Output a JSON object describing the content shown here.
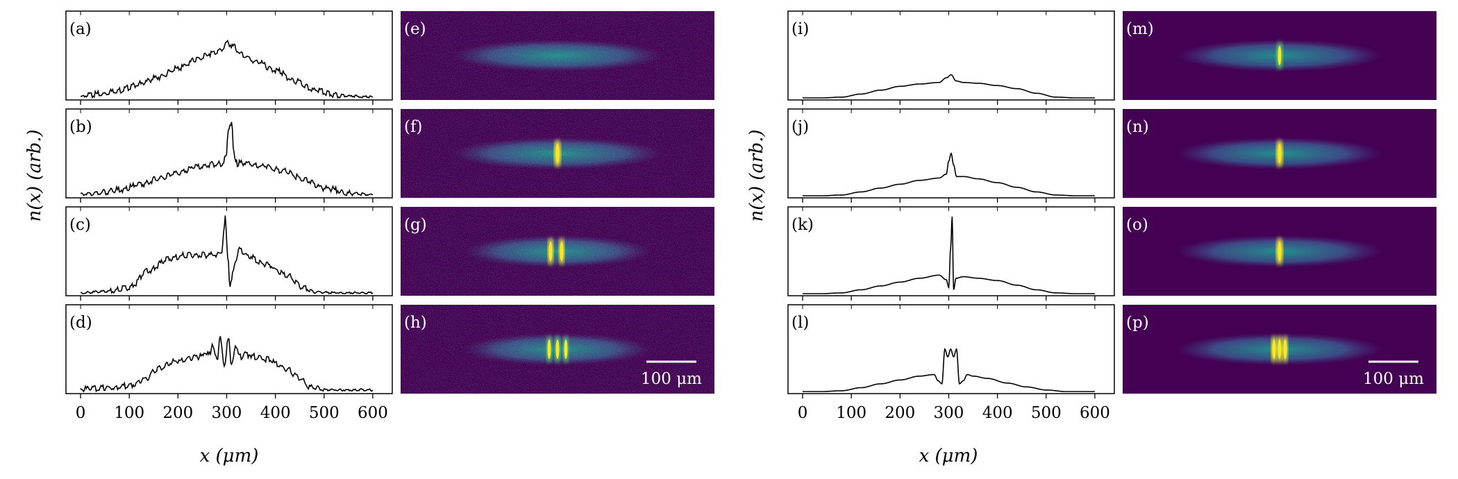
{
  "figure": {
    "ylabel": "n(x) (arb.)",
    "xlabel": "x (μm)",
    "scalebar_label": "100 μm",
    "colormap": [
      "#440154",
      "#3b528b",
      "#21908c",
      "#5dc962",
      "#fde725"
    ]
  },
  "chart_data": [
    {
      "group": "experiment",
      "type": "line",
      "xlabel": "x (μm)",
      "ylabel": "n(x) (arb.)",
      "xlim": [
        -30,
        640
      ],
      "xticks": [
        0,
        100,
        200,
        300,
        400,
        500,
        600
      ],
      "xtick_labels": [
        "0",
        "100",
        "200",
        "300",
        "400",
        "500",
        "600"
      ],
      "panels": [
        {
          "label": "(a)",
          "x": [
            0,
            40,
            80,
            120,
            160,
            200,
            240,
            270,
            290,
            300,
            315,
            330,
            360,
            400,
            440,
            480,
            520,
            560,
            600
          ],
          "y": [
            0.02,
            0.05,
            0.1,
            0.18,
            0.27,
            0.38,
            0.5,
            0.58,
            0.62,
            0.72,
            0.66,
            0.56,
            0.47,
            0.36,
            0.22,
            0.1,
            0.04,
            0.02,
            0.01
          ]
        },
        {
          "label": "(b)",
          "x": [
            0,
            40,
            80,
            120,
            160,
            200,
            240,
            270,
            290,
            298,
            305,
            310,
            315,
            322,
            340,
            380,
            420,
            460,
            500,
            560,
            600
          ],
          "y": [
            0.02,
            0.04,
            0.08,
            0.14,
            0.22,
            0.3,
            0.38,
            0.41,
            0.42,
            0.5,
            0.9,
            0.95,
            0.55,
            0.42,
            0.42,
            0.38,
            0.32,
            0.2,
            0.1,
            0.03,
            0.01
          ]
        },
        {
          "label": "(c)",
          "x": [
            0,
            60,
            100,
            140,
            180,
            220,
            260,
            280,
            290,
            297,
            302,
            307,
            312,
            318,
            326,
            340,
            380,
            420,
            460,
            480,
            520,
            600
          ],
          "y": [
            0.01,
            0.03,
            0.08,
            0.3,
            0.45,
            0.5,
            0.5,
            0.5,
            0.55,
            0.98,
            0.5,
            0.1,
            0.25,
            0.45,
            0.58,
            0.5,
            0.38,
            0.25,
            0.08,
            0.02,
            0.01,
            0.01
          ]
        },
        {
          "label": "(d)",
          "x": [
            0,
            60,
            100,
            130,
            160,
            200,
            240,
            265,
            272,
            280,
            287,
            295,
            303,
            310,
            318,
            326,
            340,
            380,
            420,
            450,
            470,
            500,
            600
          ],
          "y": [
            0.03,
            0.05,
            0.08,
            0.15,
            0.3,
            0.4,
            0.45,
            0.48,
            0.62,
            0.4,
            0.72,
            0.3,
            0.7,
            0.32,
            0.62,
            0.45,
            0.48,
            0.42,
            0.3,
            0.18,
            0.06,
            0.02,
            0.02
          ]
        }
      ]
    },
    {
      "group": "theory",
      "type": "line",
      "xlabel": "x (μm)",
      "ylabel": "n(x) (arb.)",
      "xlim": [
        -30,
        640
      ],
      "xticks": [
        0,
        100,
        200,
        300,
        400,
        500,
        600
      ],
      "xtick_labels": [
        "0",
        "100",
        "200",
        "300",
        "400",
        "500",
        "600"
      ],
      "panels": [
        {
          "label": "(i)",
          "x": [
            0,
            40,
            80,
            120,
            160,
            200,
            240,
            280,
            295,
            305,
            315,
            330,
            360,
            400,
            440,
            480,
            520,
            560,
            600
          ],
          "y": [
            0.0,
            0.0,
            0.01,
            0.05,
            0.1,
            0.15,
            0.18,
            0.2,
            0.26,
            0.3,
            0.22,
            0.2,
            0.19,
            0.16,
            0.12,
            0.06,
            0.01,
            0.0,
            0.0
          ]
        },
        {
          "label": "(j)",
          "x": [
            0,
            40,
            80,
            120,
            160,
            200,
            240,
            280,
            295,
            300,
            305,
            310,
            316,
            330,
            360,
            400,
            440,
            480,
            520,
            560,
            600
          ],
          "y": [
            0.0,
            0.0,
            0.01,
            0.05,
            0.1,
            0.15,
            0.2,
            0.23,
            0.28,
            0.45,
            0.55,
            0.4,
            0.25,
            0.25,
            0.22,
            0.17,
            0.11,
            0.05,
            0.01,
            0.0,
            0.0
          ]
        },
        {
          "label": "(k)",
          "x": [
            0,
            40,
            80,
            120,
            160,
            200,
            240,
            280,
            295,
            300,
            304,
            307,
            310,
            315,
            330,
            360,
            400,
            440,
            480,
            520,
            560,
            600
          ],
          "y": [
            0.0,
            0.0,
            0.01,
            0.05,
            0.1,
            0.15,
            0.2,
            0.24,
            0.18,
            0.08,
            0.6,
            1.0,
            0.05,
            0.2,
            0.22,
            0.2,
            0.17,
            0.11,
            0.05,
            0.01,
            0.0,
            0.0
          ]
        },
        {
          "label": "(l)",
          "x": [
            0,
            40,
            80,
            120,
            160,
            200,
            240,
            270,
            278,
            286,
            292,
            298,
            304,
            310,
            316,
            322,
            330,
            338,
            350,
            380,
            420,
            460,
            500,
            540,
            600
          ],
          "y": [
            0.0,
            0.0,
            0.01,
            0.05,
            0.1,
            0.15,
            0.2,
            0.22,
            0.14,
            0.1,
            0.55,
            0.45,
            0.55,
            0.45,
            0.55,
            0.1,
            0.14,
            0.22,
            0.2,
            0.17,
            0.11,
            0.06,
            0.02,
            0.0,
            0.0
          ]
        }
      ]
    },
    {
      "group": "experiment-images",
      "type": "heatmap",
      "panels": [
        {
          "label": "(e)",
          "fringes": [],
          "peak": 0.95
        },
        {
          "label": "(f)",
          "fringes": [
            0
          ],
          "peak": 0.9
        },
        {
          "label": "(g)",
          "fringes": [
            -10,
            6
          ],
          "peak": 0.9
        },
        {
          "label": "(h)",
          "fringes": [
            -12,
            0,
            12
          ],
          "peak": 0.75
        }
      ],
      "scalebar": "100 μm"
    },
    {
      "group": "theory-images",
      "type": "heatmap",
      "panels": [
        {
          "label": "(m)",
          "fringes": [
            0
          ],
          "peak": 0.7
        },
        {
          "label": "(n)",
          "fringes": [
            0
          ],
          "peak": 0.9
        },
        {
          "label": "(o)",
          "fringes": [
            0
          ],
          "peak": 1.0
        },
        {
          "label": "(p)",
          "fringes": [
            -8,
            0,
            8
          ],
          "peak": 0.95
        }
      ],
      "scalebar": "100 μm"
    }
  ]
}
